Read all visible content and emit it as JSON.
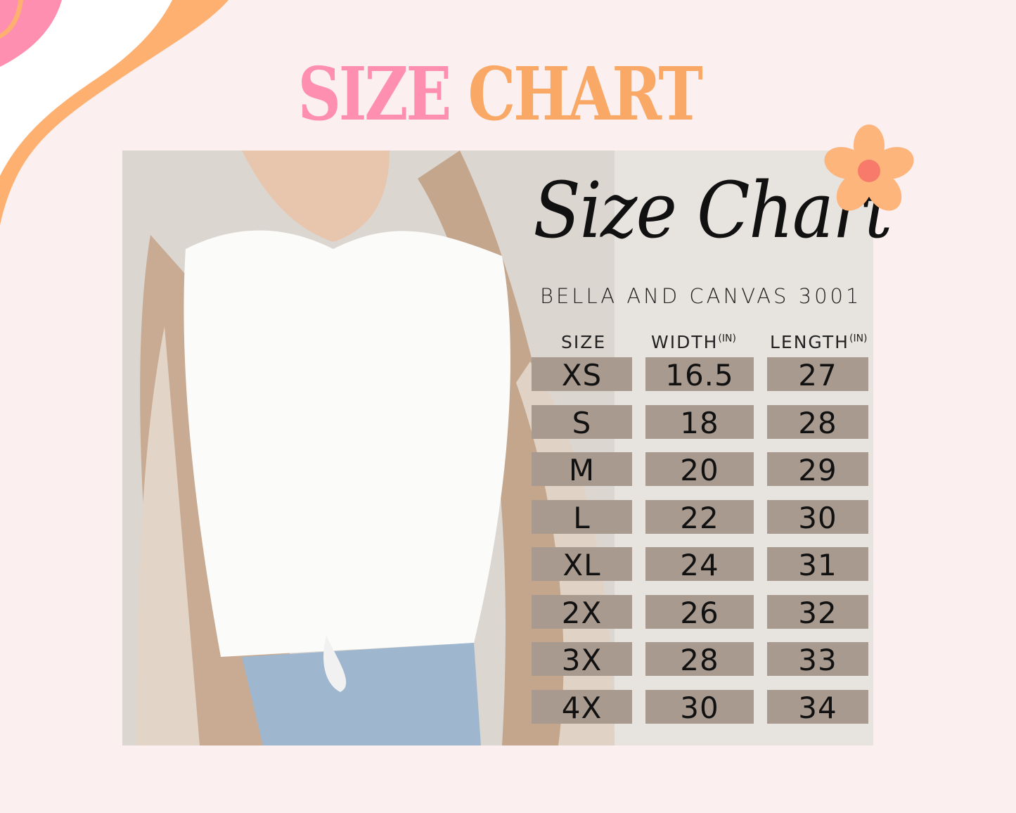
{
  "title": {
    "words": [
      "SIZE",
      "CHART"
    ],
    "colors": {
      "pink": "#ff8fb1",
      "orange": "#f9a865"
    }
  },
  "script_heading": "Size Chart",
  "brand": "BELLA AND CANVAS 3001",
  "columns": [
    {
      "label": "SIZE",
      "unit": ""
    },
    {
      "label": "WIDTH",
      "unit": "(IN)"
    },
    {
      "label": "LENGTH",
      "unit": "(IN)"
    }
  ],
  "rows": [
    {
      "size": "XS",
      "width": "16.5",
      "length": "27"
    },
    {
      "size": "S",
      "width": "18",
      "length": "28"
    },
    {
      "size": "M",
      "width": "20",
      "length": "29"
    },
    {
      "size": "L",
      "width": "22",
      "length": "30"
    },
    {
      "size": "XL",
      "width": "24",
      "length": "31"
    },
    {
      "size": "2X",
      "width": "26",
      "length": "32"
    },
    {
      "size": "3X",
      "width": "28",
      "length": "33"
    },
    {
      "size": "4X",
      "width": "30",
      "length": "34"
    }
  ],
  "colors": {
    "background": "#fcefef",
    "cell": "#a99a8f",
    "flower": "#fdb57c",
    "flower_center": "#f77a6a"
  }
}
